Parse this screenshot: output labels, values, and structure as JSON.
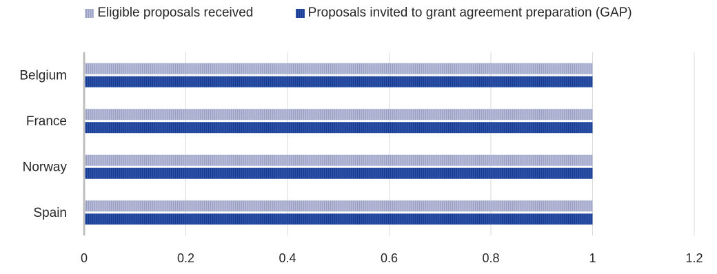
{
  "chart_data": {
    "type": "bar",
    "orientation": "horizontal",
    "title": "",
    "xlabel": "",
    "ylabel": "",
    "categories": [
      "Belgium",
      "France",
      "Norway",
      "Spain"
    ],
    "series": [
      {
        "name": "Eligible proposals received",
        "values": [
          1,
          1,
          1,
          1
        ],
        "color": "#b4b9d6",
        "stripe": "#9aa0c4"
      },
      {
        "name": "Proposals invited to grant agreement preparation (GAP)",
        "values": [
          1,
          1,
          1,
          1
        ],
        "color": "#2a50a8",
        "stripe": "#173a8a"
      }
    ],
    "xlim": [
      0,
      1.2
    ],
    "ticks": [
      "0",
      "0.2",
      "0.4",
      "0.6",
      "0.8",
      "1",
      "1.2"
    ],
    "tick_values": [
      0,
      0.2,
      0.4,
      0.6,
      0.8,
      1.0,
      1.2
    ],
    "grid": true,
    "legend_position": "top"
  }
}
